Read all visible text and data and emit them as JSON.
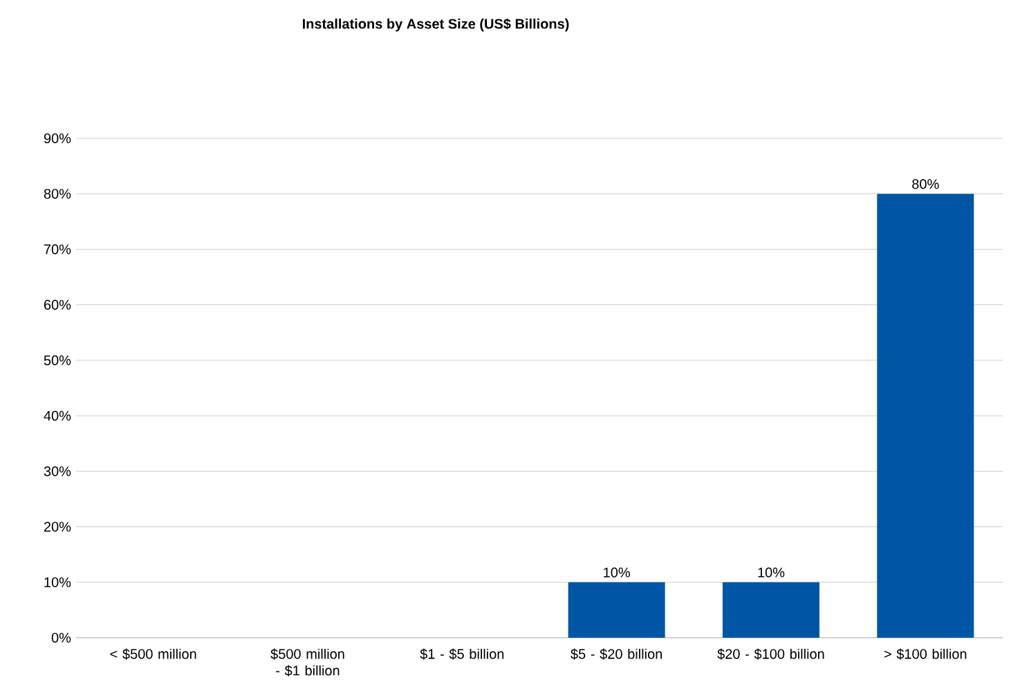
{
  "chart_data": {
    "type": "bar",
    "title": "Installations by Asset Size (US$ Billions)",
    "categories": [
      "< $500 million",
      "$500 million - $1 billion",
      "$1  - $5 billion",
      "$5 - $20 billion",
      "$20 - $100 billion",
      "> $100 billion"
    ],
    "values": [
      0,
      0,
      0,
      10,
      10,
      80
    ],
    "value_labels": [
      null,
      null,
      null,
      "10%",
      "10%",
      "80%"
    ],
    "color": "#0055a5",
    "ylim": [
      0,
      90
    ],
    "yticks": [
      {
        "value": 0,
        "label": "0%"
      },
      {
        "value": 10,
        "label": "10%"
      },
      {
        "value": 20,
        "label": "20%"
      },
      {
        "value": 30,
        "label": "30%"
      },
      {
        "value": 40,
        "label": "40%"
      },
      {
        "value": 50,
        "label": "50%"
      },
      {
        "value": 60,
        "label": "60%"
      },
      {
        "value": 70,
        "label": "70%"
      },
      {
        "value": 80,
        "label": "80%"
      },
      {
        "value": 90,
        "label": "90%"
      }
    ],
    "grid": "y"
  }
}
